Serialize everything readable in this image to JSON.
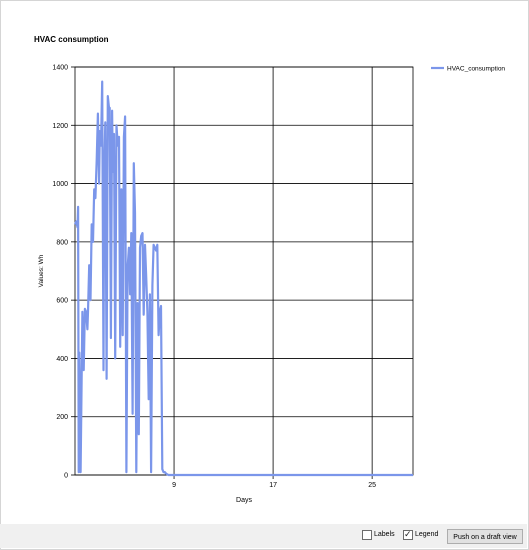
{
  "chart_data": {
    "type": "line",
    "title": "HVAC consumption",
    "xlabel": "Days",
    "ylabel": "Values: Wh",
    "xlim": [
      1,
      28.3
    ],
    "ylim": [
      0,
      1400
    ],
    "xticks": [
      9,
      17,
      25
    ],
    "yticks": [
      0,
      200,
      400,
      600,
      800,
      1000,
      1200,
      1400
    ],
    "grid": true,
    "legend": "top-right",
    "series": [
      {
        "name": "HVAC_consumption",
        "color": "#7b96ea",
        "x": [
          1.0,
          1.1,
          1.2,
          1.25,
          1.3,
          1.35,
          1.45,
          1.55,
          1.6,
          1.7,
          1.8,
          1.9,
          2.0,
          2.05,
          2.15,
          2.25,
          2.35,
          2.45,
          2.55,
          2.65,
          2.75,
          2.85,
          2.95,
          3.0,
          3.1,
          3.2,
          3.3,
          3.35,
          3.45,
          3.55,
          3.65,
          3.75,
          3.8,
          3.9,
          4.0,
          4.05,
          4.15,
          4.25,
          4.35,
          4.45,
          4.55,
          4.65,
          4.75,
          4.85,
          4.95,
          5.05,
          5.15,
          5.25,
          5.35,
          5.45,
          5.55,
          5.65,
          5.75,
          5.85,
          5.95,
          6.05,
          6.15,
          6.25,
          6.35,
          6.45,
          6.55,
          6.65,
          6.75,
          6.85,
          6.95,
          7.05,
          7.15,
          7.25,
          7.35,
          7.45,
          7.55,
          7.65,
          7.75,
          7.85,
          7.95,
          8.05,
          8.15,
          8.25,
          8.35,
          8.45,
          8.55,
          8.65,
          8.75,
          9.0,
          12.0,
          16.0,
          20.0,
          24.0,
          28.3
        ],
        "values": [
          860,
          870,
          850,
          920,
          10,
          420,
          10,
          380,
          560,
          360,
          570,
          560,
          500,
          560,
          720,
          600,
          860,
          800,
          980,
          950,
          1080,
          1240,
          1000,
          1180,
          1130,
          1350,
          360,
          1010,
          1210,
          330,
          1300,
          1260,
          1260,
          470,
          1250,
          1040,
          1170,
          400,
          1200,
          1130,
          1160,
          440,
          980,
          480,
          1160,
          1230,
          10,
          710,
          780,
          620,
          830,
          210,
          1070,
          900,
          10,
          590,
          140,
          780,
          820,
          830,
          550,
          790,
          680,
          560,
          260,
          620,
          10,
          650,
          790,
          780,
          770,
          790,
          480,
          560,
          580,
          20,
          10,
          10,
          5,
          2,
          0,
          0,
          0,
          0,
          0,
          0,
          0,
          0,
          0
        ]
      }
    ]
  },
  "footer": {
    "labels_label": "Labels",
    "legend_label": "Legend",
    "legend_checked": true,
    "labels_checked": false,
    "push_button_label": "Push on a draft view"
  }
}
